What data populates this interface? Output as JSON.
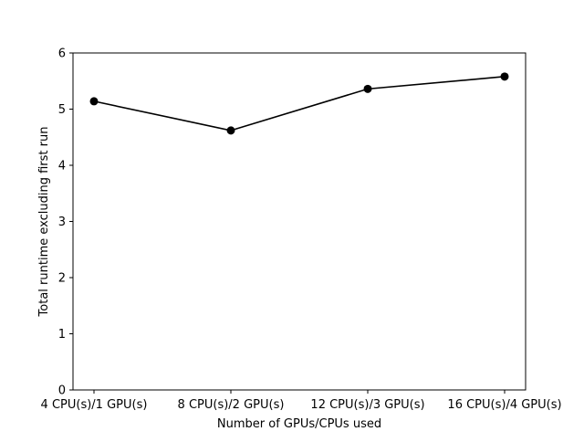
{
  "chart_data": {
    "type": "line",
    "title": "",
    "xlabel": "Number of GPUs/CPUs used",
    "ylabel": "Total runtime excluding first run",
    "categories": [
      "4 CPU(s)/1 GPU(s)",
      "8 CPU(s)/2 GPU(s)",
      "12 CPU(s)/3 GPU(s)",
      "16 CPU(s)/4 GPU(s)"
    ],
    "series": [
      {
        "values": [
          5.14,
          4.62,
          5.36,
          5.58
        ],
        "color": "#000000",
        "marker": "circle"
      }
    ],
    "ylim": [
      0,
      6
    ],
    "yticks": [
      "0",
      "1",
      "2",
      "3",
      "4",
      "5",
      "6"
    ],
    "grid": false,
    "legend": "none"
  }
}
